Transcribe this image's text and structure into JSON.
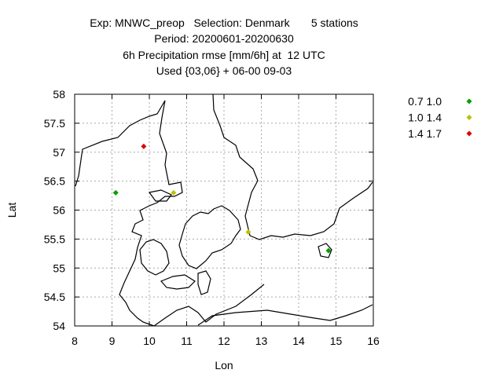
{
  "chart_data": {
    "type": "scatter",
    "title_lines": [
      "Exp: MNWC_preop   Selection: Denmark       5 stations",
      "Period: 20200601-20200630",
      "6h Precipitation rmse [mm/6h] at  12 UTC",
      "Used {03,06} + 06-00 09-03"
    ],
    "xlabel": "Lon",
    "ylabel": "Lat",
    "xlim": [
      8,
      16
    ],
    "ylim": [
      54,
      58
    ],
    "xticks": [
      "8",
      "9",
      "10",
      "11",
      "12",
      "13",
      "14",
      "15",
      "16"
    ],
    "yticks": [
      "54",
      "54.5",
      "55",
      "55.5",
      "56",
      "56.5",
      "57",
      "57.5",
      "58"
    ],
    "grid": true,
    "legend_position": "outside-right",
    "series": [
      {
        "name": "0.7 1.0",
        "color": "#00a000",
        "points": [
          [
            9.1,
            56.3
          ],
          [
            14.8,
            55.3
          ]
        ]
      },
      {
        "name": "1.0 1.4",
        "color": "#c0c000",
        "points": [
          [
            10.65,
            56.3
          ],
          [
            12.65,
            55.62
          ]
        ]
      },
      {
        "name": "1.4 1.7",
        "color": "#e00000",
        "points": [
          [
            9.85,
            57.1
          ]
        ]
      }
    ]
  }
}
